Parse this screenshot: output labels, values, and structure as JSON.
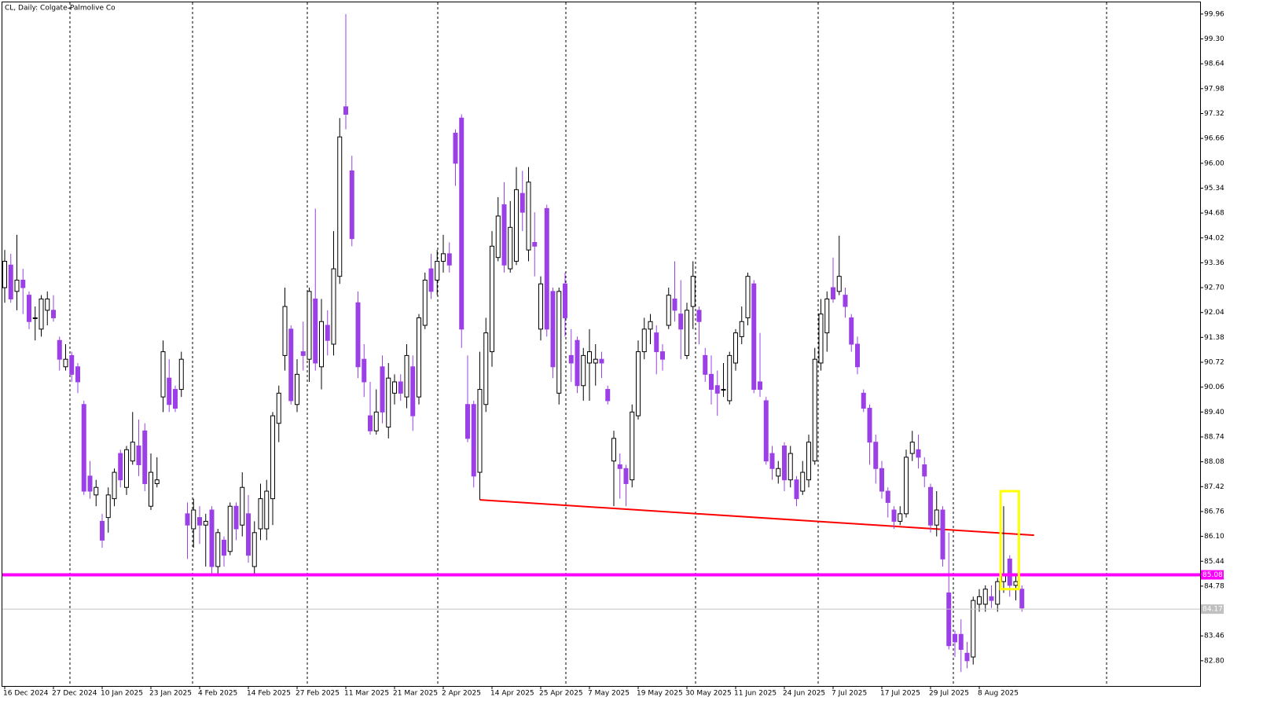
{
  "chart_data": {
    "type": "candlestick",
    "title": "CL, Daily:  Colgate-Palmolive Co",
    "open": [
      92.7,
      93.3,
      92.6,
      92.9,
      92.5,
      91.9,
      91.6,
      92.1,
      92.1,
      91.3,
      90.6,
      90.9,
      90.6,
      89.6,
      87.7,
      87.2,
      86.5,
      86.6,
      87.1,
      88.3,
      87.4,
      88.1,
      88.5,
      88.9,
      86.9,
      87.5,
      89.8,
      90.3,
      90.0,
      90.0,
      86.7,
      86.3,
      86.6,
      86.4,
      86.8,
      85.3,
      86.0,
      85.7,
      86.9,
      86.4,
      86.7,
      85.3,
      86.3,
      86.3,
      87.1,
      89.1,
      90.9,
      91.6,
      89.6,
      91.0,
      90.8,
      92.4,
      90.6,
      91.7,
      91.2,
      93.0,
      97.5,
      95.8,
      92.3,
      90.8,
      89.3,
      88.9,
      90.6,
      89.0,
      89.9,
      90.2,
      89.8,
      90.6,
      89.8,
      91.7,
      93.2,
      92.9,
      93.4,
      93.6,
      96.8,
      97.2,
      89.6,
      89.6,
      87.8,
      89.6,
      91.0,
      93.5,
      94.9,
      93.2,
      93.4,
      95.2,
      93.7,
      93.9,
      91.6,
      94.8,
      92.6,
      89.9,
      92.8,
      90.9,
      91.3,
      90.1,
      90.7,
      90.7,
      90.8,
      90.0,
      88.1,
      88.0,
      87.9,
      87.6,
      89.3,
      91.0,
      91.6,
      91.5,
      91.0,
      91.7,
      92.4,
      92.0,
      90.9,
      92.2,
      92.1,
      90.9,
      90.4,
      90.1,
      90.0,
      89.7,
      90.7,
      91.4,
      91.9,
      92.8,
      90.2,
      89.7,
      88.3,
      87.7,
      88.5,
      87.6,
      87.6,
      87.3,
      87.6,
      88.1,
      90.7,
      91.5,
      92.7,
      92.6,
      92.5,
      91.9,
      91.2,
      89.9,
      89.5,
      88.6,
      87.9,
      87.3,
      86.8,
      86.5,
      86.7,
      88.3,
      88.4,
      88.0,
      87.4,
      86.4,
      86.8,
      84.6,
      83.5,
      83.5,
      83.0,
      82.9,
      84.3,
      84.3,
      84.5,
      84.3,
      84.9,
      85.5,
      84.8,
      84.7
    ],
    "high": [
      93.7,
      93.6,
      94.1,
      93.2,
      92.6,
      92.2,
      92.5,
      92.6,
      92.5,
      91.4,
      91.2,
      91.0,
      90.7,
      89.7,
      88.1,
      87.6,
      86.7,
      87.4,
      87.9,
      88.4,
      88.5,
      89.4,
      89.2,
      89.1,
      88.3,
      88.2,
      91.3,
      90.8,
      90.1,
      91.0,
      87.0,
      87.1,
      86.9,
      86.7,
      86.9,
      86.3,
      86.1,
      87.0,
      87.0,
      87.8,
      87.2,
      86.5,
      87.5,
      87.6,
      89.4,
      90.1,
      92.7,
      91.7,
      90.8,
      91.8,
      92.7,
      94.8,
      92.4,
      92.1,
      94.2,
      97.2,
      99.96,
      96.2,
      92.6,
      91.2,
      90.2,
      90.0,
      90.9,
      90.7,
      90.4,
      90.4,
      91.2,
      90.9,
      92.0,
      93.1,
      93.6,
      93.7,
      94.1,
      93.9,
      96.9,
      97.3,
      90.9,
      89.7,
      91.0,
      91.9,
      94.2,
      95.1,
      95.5,
      95.0,
      95.9,
      95.8,
      95.9,
      94.7,
      93.0,
      94.9,
      92.7,
      92.7,
      93.1,
      91.6,
      91.4,
      91.1,
      91.6,
      91.2,
      91.0,
      90.1,
      88.9,
      88.3,
      88.0,
      89.6,
      91.3,
      91.9,
      92.0,
      91.7,
      91.2,
      92.7,
      93.4,
      92.9,
      92.3,
      93.4,
      92.2,
      91.1,
      90.9,
      90.5,
      90.7,
      91.0,
      91.6,
      92.2,
      93.1,
      92.9,
      91.5,
      89.8,
      88.5,
      88.1,
      88.6,
      88.5,
      87.7,
      88.1,
      88.8,
      91.1,
      92.4,
      92.6,
      93.5,
      94.08,
      92.7,
      92.0,
      91.4,
      90.0,
      89.6,
      88.8,
      88.1,
      87.4,
      86.9,
      86.9,
      88.4,
      88.9,
      88.8,
      88.2,
      87.5,
      87.3,
      86.9,
      86.2,
      83.6,
      83.9,
      83.3,
      84.5,
      84.7,
      84.8,
      84.8,
      85.0,
      86.9,
      85.6,
      85.1,
      84.8
    ],
    "low": [
      92.3,
      92.3,
      92.1,
      92.0,
      91.6,
      91.3,
      91.4,
      91.7,
      91.8,
      90.5,
      90.5,
      90.2,
      89.9,
      87.2,
      87.1,
      86.9,
      85.8,
      86.2,
      86.9,
      87.4,
      87.2,
      88.0,
      87.7,
      87.3,
      86.8,
      87.4,
      89.4,
      89.4,
      89.4,
      89.8,
      85.5,
      85.8,
      85.9,
      85.3,
      85.1,
      85.1,
      85.3,
      85.6,
      86.0,
      86.1,
      85.4,
      85.1,
      86.0,
      86.0,
      86.4,
      88.6,
      90.5,
      89.6,
      89.4,
      90.5,
      90.2,
      90.5,
      90.0,
      90.9,
      90.9,
      92.8,
      96.9,
      93.8,
      90.3,
      89.8,
      88.8,
      88.8,
      89.1,
      88.7,
      89.6,
      89.7,
      89.5,
      88.9,
      89.6,
      91.6,
      92.4,
      92.5,
      93.1,
      93.1,
      95.4,
      91.1,
      88.6,
      87.4,
      87.07,
      89.4,
      90.6,
      93.4,
      93.1,
      93.1,
      93.3,
      94.2,
      93.4,
      93.0,
      91.3,
      91.4,
      90.3,
      89.6,
      91.4,
      90.2,
      89.9,
      89.7,
      89.7,
      90.1,
      90.3,
      89.6,
      86.9,
      87.1,
      86.9,
      87.4,
      89.2,
      90.8,
      91.2,
      90.4,
      90.5,
      91.6,
      91.8,
      90.8,
      90.8,
      91.6,
      91.2,
      90.2,
      89.6,
      89.3,
      89.8,
      89.6,
      90.5,
      91.2,
      91.7,
      89.9,
      89.8,
      88.0,
      87.6,
      87.5,
      87.3,
      87.4,
      86.9,
      87.2,
      87.4,
      88.0,
      90.5,
      91.0,
      92.3,
      92.5,
      91.9,
      91.0,
      90.4,
      89.4,
      88.0,
      87.5,
      87.1,
      86.6,
      86.3,
      86.4,
      86.6,
      88.1,
      87.9,
      87.4,
      86.2,
      86.1,
      85.3,
      83.1,
      82.9,
      82.5,
      82.6,
      82.7,
      84.1,
      84.1,
      84.2,
      84.1,
      84.6,
      84.5,
      84.4,
      84.1
    ],
    "close": [
      93.4,
      92.4,
      92.9,
      92.7,
      91.8,
      91.9,
      92.4,
      92.4,
      91.9,
      90.8,
      90.8,
      90.4,
      90.2,
      87.3,
      87.3,
      87.4,
      86.0,
      87.2,
      87.8,
      87.6,
      88.4,
      88.6,
      88.0,
      87.5,
      87.8,
      87.6,
      91.0,
      89.6,
      89.5,
      90.8,
      86.4,
      86.8,
      86.4,
      86.5,
      85.3,
      86.2,
      85.6,
      86.9,
      86.3,
      87.4,
      85.6,
      86.2,
      87.1,
      87.3,
      89.3,
      89.9,
      92.2,
      89.7,
      90.4,
      90.9,
      92.6,
      90.7,
      91.8,
      91.3,
      93.2,
      96.7,
      97.3,
      94.0,
      90.6,
      90.2,
      88.9,
      89.4,
      89.4,
      90.3,
      90.2,
      89.9,
      90.9,
      89.3,
      91.9,
      92.9,
      92.6,
      93.4,
      93.6,
      93.3,
      96.0,
      91.6,
      88.7,
      87.7,
      90.0,
      91.5,
      93.8,
      94.6,
      93.3,
      94.3,
      95.3,
      94.7,
      95.5,
      93.8,
      92.8,
      91.6,
      90.6,
      92.6,
      91.9,
      90.7,
      90.1,
      90.9,
      91.0,
      90.8,
      90.7,
      89.7,
      88.7,
      87.9,
      87.5,
      89.4,
      91.0,
      91.6,
      91.8,
      91.0,
      90.8,
      92.5,
      92.1,
      91.6,
      92.1,
      93.0,
      91.8,
      90.4,
      90.0,
      89.9,
      90.0,
      90.9,
      91.5,
      91.8,
      93.0,
      90.0,
      90.0,
      88.1,
      87.9,
      87.9,
      87.6,
      88.3,
      87.1,
      87.8,
      88.6,
      90.8,
      92.0,
      92.4,
      92.4,
      93.0,
      92.2,
      91.2,
      90.6,
      89.5,
      88.6,
      87.9,
      87.3,
      87.0,
      86.5,
      86.7,
      88.2,
      88.6,
      88.2,
      87.7,
      86.4,
      86.8,
      85.5,
      83.2,
      83.3,
      83.1,
      82.8,
      84.4,
      84.5,
      84.7,
      84.4,
      84.9,
      85.1,
      84.8,
      84.9,
      84.2
    ],
    "up_color": "#ffffff",
    "down_color": "#9a40e6",
    "ylim": [
      82.13,
      100.27
    ],
    "yticks": [
      99.96,
      {
        "value": 99.3,
        "label": "99.30"
      },
      98.64,
      97.98,
      97.32,
      96.66,
      {
        "value": 96,
        "label": "96.00"
      },
      95.34,
      94.68,
      94.02,
      93.36,
      {
        "value": 92.7,
        "label": "92.70"
      },
      92.04,
      91.38,
      90.72,
      90.06,
      {
        "value": 89.4,
        "label": "89.40"
      },
      88.74,
      88.08,
      87.42,
      86.76,
      {
        "value": 86.1,
        "label": "86.10"
      },
      85.44,
      84.78,
      83.46,
      {
        "value": 82.8,
        "label": "82.80"
      }
    ],
    "xticks": [
      {
        "value": 0,
        "label": "16 Dec 2024"
      },
      {
        "value": 8,
        "label": "27 Dec 2024"
      },
      {
        "value": 16,
        "label": "10 Jan 2025"
      },
      {
        "value": 24,
        "label": "23 Jan 2025"
      },
      {
        "value": 32,
        "label": "4 Feb 2025"
      },
      {
        "value": 40,
        "label": "14 Feb 2025"
      },
      {
        "value": 48,
        "label": "27 Feb 2025"
      },
      {
        "value": 56,
        "label": "11 Mar 2025"
      },
      {
        "value": 64,
        "label": "21 Mar 2025"
      },
      {
        "value": 72,
        "label": "2 Apr 2025"
      },
      {
        "value": 80,
        "label": "14 Apr 2025"
      },
      {
        "value": 88,
        "label": "25 Apr 2025"
      },
      {
        "value": 96,
        "label": "7 May 2025"
      },
      {
        "value": 104,
        "label": "19 May 2025"
      },
      {
        "value": 112,
        "label": "30 May 2025"
      },
      {
        "value": 120,
        "label": "11 Jun 2025"
      },
      {
        "value": 128,
        "label": "24 Jun 2025"
      },
      {
        "value": 136,
        "label": "7 Jul 2025"
      },
      {
        "value": 144,
        "label": "17 Jul 2025"
      },
      {
        "value": 152,
        "label": "29 Jul 2025"
      },
      {
        "value": 160,
        "label": "8 Aug 2025"
      }
    ],
    "levels": [
      {
        "value": 85.08,
        "color": "#ff00ff"
      },
      {
        "value": 84.17,
        "color": "#c0c0c0"
      }
    ],
    "trendline": {
      "x": [
        78,
        169
      ],
      "y": [
        87.07,
        86.13
      ],
      "color": "#ff0000"
    },
    "highlight": {
      "x": [
        163.5,
        166.5
      ],
      "y": [
        84.7,
        87.3
      ],
      "color": "#ffff00"
    }
  }
}
